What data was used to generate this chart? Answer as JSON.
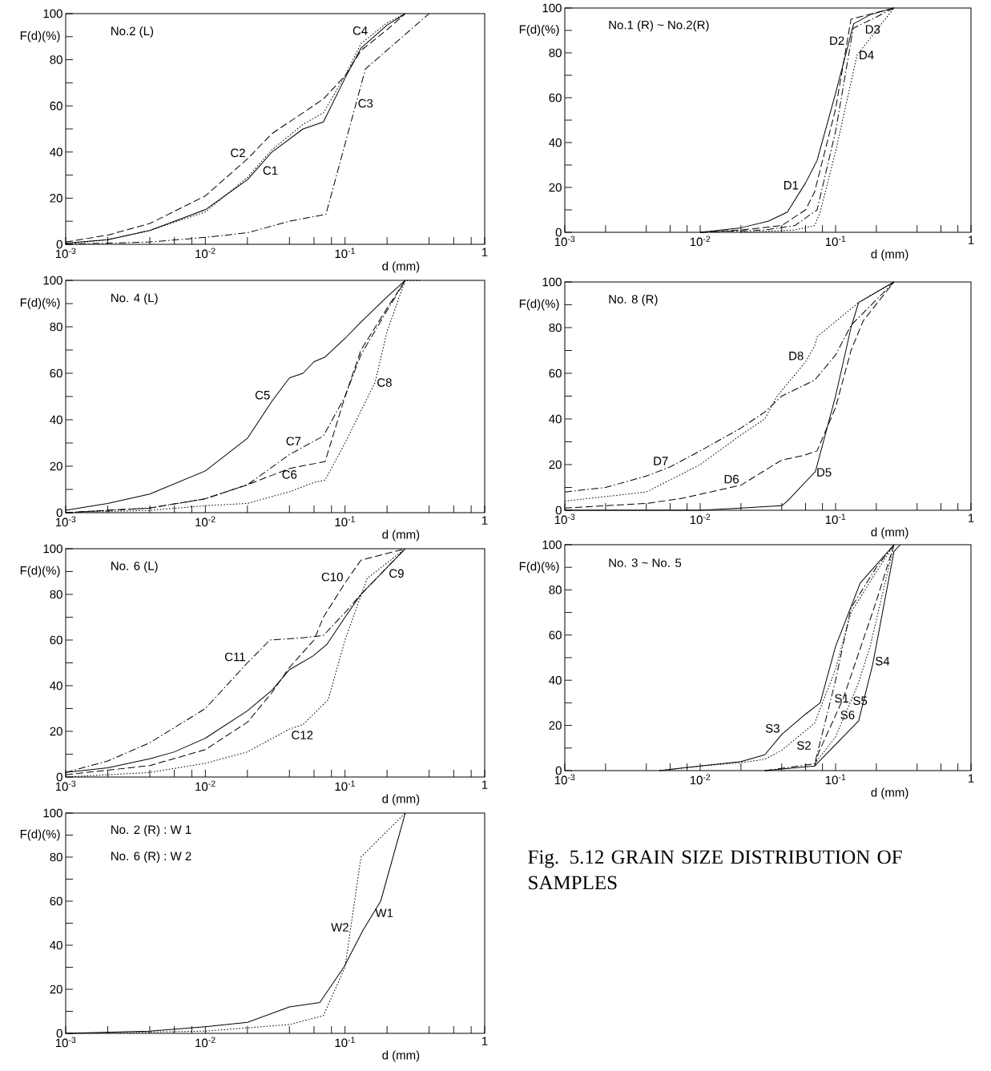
{
  "chart_data": [
    {
      "type": "line",
      "title": "No.2 (L)",
      "xlabel": "d (mm)",
      "ylabel": "F(d)(%)",
      "log": "x",
      "xlim": [
        0.001,
        1
      ],
      "ylim": [
        0,
        100
      ],
      "xticks": [
        {
          "value": 0.001,
          "label": "10$^{-3}$"
        },
        {
          "value": 0.002,
          "label": null
        },
        {
          "value": 0.004,
          "label": null
        },
        {
          "value": 0.006,
          "label": null
        },
        {
          "value": 0.008,
          "label": null
        },
        {
          "value": 0.01,
          "label": "10$^{-2}$"
        },
        {
          "value": 0.02,
          "label": null
        },
        {
          "value": 0.04,
          "label": null
        },
        {
          "value": 0.06,
          "label": null
        },
        {
          "value": 0.08,
          "label": null
        },
        {
          "value": 0.1,
          "label": "10$^{-1}$"
        },
        {
          "value": 0.2,
          "label": null
        },
        {
          "value": 0.4,
          "label": null
        },
        {
          "value": 0.6,
          "label": null
        },
        {
          "value": 0.8,
          "label": null
        },
        1
      ],
      "yticks": [
        0,
        {
          "value": 10,
          "label": null
        },
        20,
        {
          "value": 30,
          "label": null
        },
        40,
        {
          "value": 50,
          "label": null
        },
        60,
        {
          "value": 70,
          "label": null
        },
        80,
        {
          "value": 90,
          "label": null
        },
        100
      ],
      "series": [
        {
          "name": "C1",
          "color": "#000000",
          "line_style": "solid",
          "x": [
            0.001,
            0.002,
            0.004,
            0.01,
            0.02,
            0.03,
            0.05,
            0.07,
            0.1,
            0.13,
            0.2,
            0.27
          ],
          "values": [
            0.5,
            2,
            6,
            15,
            28,
            40,
            50,
            53,
            72,
            85,
            95,
            100
          ]
        },
        {
          "name": "C2",
          "color": "#000000",
          "line_style": "dashed",
          "x": [
            0.001,
            0.002,
            0.004,
            0.01,
            0.02,
            0.03,
            0.05,
            0.07,
            0.1,
            0.13,
            0.2,
            0.27
          ],
          "values": [
            1,
            4,
            9,
            21,
            37,
            48,
            57,
            63,
            73,
            84,
            93,
            100
          ]
        },
        {
          "name": "C3",
          "color": "#000000",
          "line_style": "dashdot",
          "x": [
            0.001,
            0.002,
            0.004,
            0.01,
            0.02,
            0.04,
            0.073,
            0.14,
            0.4
          ],
          "values": [
            0,
            0.5,
            1,
            3,
            5,
            10,
            13,
            76,
            100
          ]
        },
        {
          "name": "C4",
          "color": "#000000",
          "line_style": "dotted",
          "x": [
            0.001,
            0.002,
            0.004,
            0.01,
            0.02,
            0.03,
            0.05,
            0.07,
            0.1,
            0.13,
            0.2,
            0.27
          ],
          "values": [
            0,
            2,
            6,
            14,
            29,
            41,
            52,
            57,
            73,
            87,
            96,
            100
          ]
        }
      ]
    },
    {
      "type": "line",
      "title": "No.1 (R) ~ No.2(R)",
      "xlabel": "d (mm)",
      "ylabel": "F(d)(%)",
      "log": "x",
      "xlim": [
        0.001,
        1
      ],
      "ylim": [
        0,
        100
      ],
      "xticks": [
        {
          "value": 0.001,
          "label": "10$^{-3}$"
        },
        {
          "value": 0.002,
          "label": null
        },
        {
          "value": 0.004,
          "label": null
        },
        {
          "value": 0.006,
          "label": null
        },
        {
          "value": 0.008,
          "label": null
        },
        {
          "value": 0.01,
          "label": "10$^{-2}$"
        },
        {
          "value": 0.02,
          "label": null
        },
        {
          "value": 0.04,
          "label": null
        },
        {
          "value": 0.06,
          "label": null
        },
        {
          "value": 0.08,
          "label": null
        },
        {
          "value": 0.1,
          "label": "10$^{-1}$"
        },
        {
          "value": 0.2,
          "label": null
        },
        {
          "value": 0.4,
          "label": null
        },
        {
          "value": 0.6,
          "label": null
        },
        {
          "value": 0.8,
          "label": null
        },
        1
      ],
      "yticks": [
        0,
        {
          "value": 10,
          "label": null
        },
        20,
        {
          "value": 30,
          "label": null
        },
        40,
        {
          "value": 50,
          "label": null
        },
        60,
        {
          "value": 70,
          "label": null
        },
        80,
        {
          "value": 90,
          "label": null
        },
        100
      ],
      "series": [
        {
          "name": "D1",
          "color": "#000000",
          "line_style": "solid",
          "x": [
            0.01,
            0.02,
            0.032,
            0.044,
            0.06,
            0.073,
            0.1,
            0.136,
            0.18,
            0.27
          ],
          "values": [
            0,
            2,
            5,
            9,
            22,
            32,
            62,
            93,
            97,
            100
          ]
        },
        {
          "name": "D2",
          "color": "#000000",
          "line_style": "dashed",
          "x": [
            0.01,
            0.02,
            0.04,
            0.06,
            0.07,
            0.1,
            0.13,
            0.2,
            0.27
          ],
          "values": [
            0,
            1,
            3,
            10,
            18,
            55,
            95,
            98,
            100
          ]
        },
        {
          "name": "D3",
          "color": "#000000",
          "line_style": "dashdot",
          "x": [
            0.01,
            0.03,
            0.05,
            0.073,
            0.1,
            0.135,
            0.2,
            0.27
          ],
          "values": [
            0,
            1,
            3,
            10,
            45,
            91,
            96,
            100
          ]
        },
        {
          "name": "D4",
          "color": "#000000",
          "line_style": "dotted",
          "x": [
            0.02,
            0.05,
            0.07,
            0.077,
            0.1,
            0.144,
            0.2,
            0.27
          ],
          "values": [
            0,
            1,
            3,
            9,
            36,
            79,
            90,
            100
          ]
        }
      ]
    },
    {
      "type": "line",
      "title": "No. 4 (L)",
      "xlabel": "d (mm)",
      "ylabel": "F(d)(%)",
      "log": "x",
      "xlim": [
        0.001,
        1
      ],
      "ylim": [
        0,
        100
      ],
      "xticks": [
        {
          "value": 0.001,
          "label": "10$^{-3}$"
        },
        {
          "value": 0.002,
          "label": null
        },
        {
          "value": 0.004,
          "label": null
        },
        {
          "value": 0.006,
          "label": null
        },
        {
          "value": 0.008,
          "label": null
        },
        {
          "value": 0.01,
          "label": "10$^{-2}$"
        },
        {
          "value": 0.02,
          "label": null
        },
        {
          "value": 0.04,
          "label": null
        },
        {
          "value": 0.06,
          "label": null
        },
        {
          "value": 0.08,
          "label": null
        },
        {
          "value": 0.1,
          "label": "10$^{-1}$"
        },
        {
          "value": 0.2,
          "label": null
        },
        {
          "value": 0.4,
          "label": null
        },
        {
          "value": 0.6,
          "label": null
        },
        {
          "value": 0.8,
          "label": null
        },
        1
      ],
      "yticks": [
        0,
        {
          "value": 10,
          "label": null
        },
        20,
        {
          "value": 30,
          "label": null
        },
        40,
        {
          "value": 50,
          "label": null
        },
        60,
        {
          "value": 70,
          "label": null
        },
        80,
        {
          "value": 90,
          "label": null
        },
        100
      ],
      "series": [
        {
          "name": "C5",
          "color": "#000000",
          "line_style": "solid",
          "x": [
            0.001,
            0.002,
            0.004,
            0.01,
            0.02,
            0.03,
            0.04,
            0.05,
            0.06,
            0.072,
            0.1,
            0.13,
            0.193,
            0.27
          ],
          "values": [
            1,
            4,
            8,
            18,
            32,
            48,
            58,
            60,
            65,
            67,
            75,
            82,
            92,
            100
          ]
        },
        {
          "name": "C6",
          "color": "#000000",
          "line_style": "dashed",
          "x": [
            0.001,
            0.004,
            0.01,
            0.02,
            0.04,
            0.072,
            0.1,
            0.13,
            0.2,
            0.27
          ],
          "values": [
            0,
            2,
            6,
            12,
            19,
            22,
            50,
            70,
            88,
            100
          ]
        },
        {
          "name": "C7",
          "color": "#000000",
          "line_style": "dashdot",
          "x": [
            0.001,
            0.004,
            0.01,
            0.02,
            0.04,
            0.07,
            0.1,
            0.13,
            0.2,
            0.27
          ],
          "values": [
            0,
            2,
            6,
            12,
            25,
            33,
            50,
            68,
            87,
            100
          ]
        },
        {
          "name": "C8",
          "color": "#000000",
          "line_style": "dotted",
          "x": [
            0.001,
            0.004,
            0.01,
            0.02,
            0.04,
            0.06,
            0.072,
            0.1,
            0.164,
            0.2,
            0.27,
            0.35
          ],
          "values": [
            0,
            1,
            3,
            4,
            9,
            13,
            14,
            30,
            56,
            78,
            100,
            100
          ]
        }
      ]
    },
    {
      "type": "line",
      "title": "No. 8 (R)",
      "xlabel": "d (mm)",
      "ylabel": "F(d)(%)",
      "log": "x",
      "xlim": [
        0.001,
        1
      ],
      "ylim": [
        0,
        100
      ],
      "xticks": [
        {
          "value": 0.001,
          "label": "10$^{-3}$"
        },
        {
          "value": 0.002,
          "label": null
        },
        {
          "value": 0.004,
          "label": null
        },
        {
          "value": 0.006,
          "label": null
        },
        {
          "value": 0.008,
          "label": null
        },
        {
          "value": 0.01,
          "label": "10$^{-2}$"
        },
        {
          "value": 0.02,
          "label": null
        },
        {
          "value": 0.04,
          "label": null
        },
        {
          "value": 0.06,
          "label": null
        },
        {
          "value": 0.08,
          "label": null
        },
        {
          "value": 0.1,
          "label": "10$^{-1}$"
        },
        {
          "value": 0.2,
          "label": null
        },
        {
          "value": 0.4,
          "label": null
        },
        {
          "value": 0.6,
          "label": null
        },
        {
          "value": 0.8,
          "label": null
        },
        1
      ],
      "yticks": [
        0,
        {
          "value": 10,
          "label": null
        },
        20,
        {
          "value": 30,
          "label": null
        },
        40,
        {
          "value": 50,
          "label": null
        },
        60,
        {
          "value": 70,
          "label": null
        },
        80,
        {
          "value": 90,
          "label": null
        },
        100
      ],
      "series": [
        {
          "name": "D5",
          "color": "#000000",
          "line_style": "solid",
          "x": [
            0.001,
            0.01,
            0.02,
            0.04,
            0.044,
            0.071,
            0.1,
            0.13,
            0.148,
            0.27
          ],
          "values": [
            0,
            0,
            1,
            2,
            4,
            17,
            50,
            80,
            91,
            100
          ]
        },
        {
          "name": "D6",
          "color": "#000000",
          "line_style": "dashed",
          "x": [
            0.001,
            0.004,
            0.007,
            0.01,
            0.02,
            0.04,
            0.058,
            0.073,
            0.1,
            0.13,
            0.16,
            0.27
          ],
          "values": [
            1,
            3,
            5,
            7,
            11,
            22,
            24,
            26,
            45,
            70,
            83,
            100
          ]
        },
        {
          "name": "D7",
          "color": "#000000",
          "line_style": "dashdot",
          "x": [
            0.001,
            0.002,
            0.004,
            0.006,
            0.01,
            0.02,
            0.03,
            0.04,
            0.07,
            0.1,
            0.13,
            0.27
          ],
          "values": [
            8,
            10,
            15,
            19,
            26,
            36,
            43,
            50,
            57,
            68,
            81,
            100
          ]
        },
        {
          "name": "D8",
          "color": "#000000",
          "line_style": "dotted",
          "x": [
            0.001,
            0.002,
            0.004,
            0.01,
            0.02,
            0.03,
            0.037,
            0.06,
            0.07,
            0.073,
            0.148,
            0.27
          ],
          "values": [
            4,
            6,
            8,
            20,
            33,
            40,
            50,
            65,
            72,
            76,
            91,
            100
          ]
        }
      ]
    },
    {
      "type": "line",
      "title": "No. 6 (L)",
      "xlabel": "d (mm)",
      "ylabel": "F(d)(%)",
      "log": "x",
      "xlim": [
        0.001,
        1
      ],
      "ylim": [
        0,
        100
      ],
      "xticks": [
        {
          "value": 0.001,
          "label": "10$^{-3}$"
        },
        {
          "value": 0.002,
          "label": null
        },
        {
          "value": 0.004,
          "label": null
        },
        {
          "value": 0.006,
          "label": null
        },
        {
          "value": 0.008,
          "label": null
        },
        {
          "value": 0.01,
          "label": "10$^{-2}$"
        },
        {
          "value": 0.02,
          "label": null
        },
        {
          "value": 0.04,
          "label": null
        },
        {
          "value": 0.06,
          "label": null
        },
        {
          "value": 0.08,
          "label": null
        },
        {
          "value": 0.1,
          "label": "10$^{-1}$"
        },
        {
          "value": 0.2,
          "label": null
        },
        {
          "value": 0.4,
          "label": null
        },
        {
          "value": 0.6,
          "label": null
        },
        {
          "value": 0.8,
          "label": null
        },
        1
      ],
      "yticks": [
        0,
        {
          "value": 10,
          "label": null
        },
        20,
        {
          "value": 30,
          "label": null
        },
        40,
        {
          "value": 50,
          "label": null
        },
        60,
        {
          "value": 70,
          "label": null
        },
        80,
        {
          "value": 90,
          "label": null
        },
        100
      ],
      "series": [
        {
          "name": "C9",
          "color": "#000000",
          "line_style": "solid",
          "x": [
            0.001,
            0.002,
            0.004,
            0.006,
            0.01,
            0.02,
            0.03,
            0.04,
            0.059,
            0.074,
            0.1,
            0.13,
            0.27
          ],
          "values": [
            2,
            4,
            8,
            11,
            17,
            29,
            38,
            47,
            53,
            58,
            70,
            80,
            100
          ]
        },
        {
          "name": "C10",
          "color": "#000000",
          "line_style": "dashed",
          "x": [
            0.001,
            0.004,
            0.01,
            0.02,
            0.03,
            0.04,
            0.06,
            0.07,
            0.1,
            0.13,
            0.27
          ],
          "values": [
            1,
            5,
            12,
            24,
            37,
            48,
            60,
            70,
            85,
            95,
            100
          ]
        },
        {
          "name": "C11",
          "color": "#000000",
          "line_style": "dashdot",
          "x": [
            0.001,
            0.002,
            0.004,
            0.01,
            0.02,
            0.029,
            0.05,
            0.07,
            0.1,
            0.13,
            0.27
          ],
          "values": [
            2,
            7,
            15,
            30,
            50,
            60,
            61,
            62,
            72,
            80,
            100
          ]
        },
        {
          "name": "C12",
          "color": "#000000",
          "line_style": "dotted",
          "x": [
            0.001,
            0.004,
            0.01,
            0.02,
            0.04,
            0.05,
            0.076,
            0.1,
            0.144,
            0.27
          ],
          "values": [
            0,
            2,
            6,
            11,
            21,
            23,
            34,
            60,
            87,
            100
          ]
        }
      ]
    },
    {
      "type": "line",
      "title": "No. 3 ~ No. 5",
      "xlabel": "d (mm)",
      "ylabel": "F(d)(%)",
      "log": "x",
      "xlim": [
        0.001,
        1
      ],
      "ylim": [
        0,
        100
      ],
      "xticks": [
        {
          "value": 0.001,
          "label": "10$^{-3}$"
        },
        {
          "value": 0.002,
          "label": null
        },
        {
          "value": 0.004,
          "label": null
        },
        {
          "value": 0.006,
          "label": null
        },
        {
          "value": 0.008,
          "label": null
        },
        {
          "value": 0.01,
          "label": "10$^{-2}$"
        },
        {
          "value": 0.02,
          "label": null
        },
        {
          "value": 0.04,
          "label": null
        },
        {
          "value": 0.06,
          "label": null
        },
        {
          "value": 0.08,
          "label": null
        },
        {
          "value": 0.1,
          "label": "10$^{-1}$"
        },
        {
          "value": 0.2,
          "label": null
        },
        {
          "value": 0.4,
          "label": null
        },
        {
          "value": 0.6,
          "label": null
        },
        {
          "value": 0.8,
          "label": null
        },
        1
      ],
      "yticks": [
        0,
        {
          "value": 10,
          "label": null
        },
        20,
        {
          "value": 30,
          "label": null
        },
        40,
        {
          "value": 50,
          "label": null
        },
        60,
        {
          "value": 70,
          "label": null
        },
        80,
        {
          "value": 90,
          "label": null
        },
        100
      ],
      "series": [
        {
          "name": "S1",
          "color": "#000000",
          "line_style": "dashdot",
          "x": [
            0.03,
            0.07,
            0.075,
            0.1,
            0.13,
            0.2,
            0.27
          ],
          "values": [
            0,
            3,
            10,
            40,
            72,
            90,
            100
          ]
        },
        {
          "name": "S2",
          "color": "#000000",
          "line_style": "dotted",
          "x": [
            0.005,
            0.01,
            0.02,
            0.03,
            0.04,
            0.07,
            0.1,
            0.13,
            0.2,
            0.27
          ],
          "values": [
            0,
            2,
            3.5,
            5,
            9,
            21,
            45,
            70,
            88,
            100
          ]
        },
        {
          "name": "S3",
          "color": "#000000",
          "line_style": "solid",
          "x": [
            0.005,
            0.01,
            0.02,
            0.03,
            0.04,
            0.06,
            0.077,
            0.1,
            0.152,
            0.27
          ],
          "values": [
            0,
            2,
            4,
            7,
            16,
            25,
            30,
            55,
            83,
            100
          ]
        },
        {
          "name": "S4",
          "color": "#000000",
          "line_style": "solid",
          "x": [
            0.03,
            0.07,
            0.148,
            0.188,
            0.27,
            0.3
          ],
          "values": [
            0,
            2,
            22,
            47,
            97,
            100
          ]
        },
        {
          "name": "S5",
          "color": "#000000",
          "line_style": "dotted",
          "x": [
            0.07,
            0.1,
            0.146,
            0.18,
            0.27
          ],
          "values": [
            3,
            15,
            38,
            55,
            100
          ]
        },
        {
          "name": "S6",
          "color": "#000000",
          "line_style": "dashed",
          "x": [
            0.07,
            0.075,
            0.114,
            0.2,
            0.27
          ],
          "values": [
            2,
            8,
            32,
            75,
            100
          ]
        }
      ]
    },
    {
      "type": "line",
      "title": "No. 2 (R) : W 1",
      "subtitle": "No. 6 (R) : W 2",
      "xlabel": "d (mm)",
      "ylabel": "F(d)(%)",
      "log": "x",
      "xlim": [
        0.001,
        1
      ],
      "ylim": [
        0,
        100
      ],
      "xticks": [
        {
          "value": 0.001,
          "label": "10$^{-3}$"
        },
        {
          "value": 0.002,
          "label": null
        },
        {
          "value": 0.004,
          "label": null
        },
        {
          "value": 0.006,
          "label": null
        },
        {
          "value": 0.008,
          "label": null
        },
        {
          "value": 0.01,
          "label": "10$^{-2}$"
        },
        {
          "value": 0.02,
          "label": null
        },
        {
          "value": 0.04,
          "label": null
        },
        {
          "value": 0.06,
          "label": null
        },
        {
          "value": 0.08,
          "label": null
        },
        {
          "value": 0.1,
          "label": "10$^{-1}$"
        },
        {
          "value": 0.2,
          "label": null
        },
        {
          "value": 0.4,
          "label": null
        },
        {
          "value": 0.6,
          "label": null
        },
        {
          "value": 0.8,
          "label": null
        },
        1
      ],
      "yticks": [
        0,
        {
          "value": 10,
          "label": null
        },
        20,
        {
          "value": 30,
          "label": null
        },
        40,
        {
          "value": 50,
          "label": null
        },
        60,
        {
          "value": 70,
          "label": null
        },
        80,
        {
          "value": 90,
          "label": null
        },
        100
      ],
      "series": [
        {
          "name": "W1",
          "color": "#000000",
          "line_style": "solid",
          "x": [
            0.001,
            0.004,
            0.01,
            0.02,
            0.04,
            0.066,
            0.098,
            0.135,
            0.18,
            0.27
          ],
          "values": [
            0,
            1,
            3,
            5,
            12,
            14,
            30,
            47,
            60,
            100
          ]
        },
        {
          "name": "W2",
          "color": "#000000",
          "line_style": "dotted",
          "x": [
            0.001,
            0.01,
            0.04,
            0.07,
            0.1,
            0.13,
            0.27
          ],
          "values": [
            0,
            1,
            4,
            8,
            30,
            80,
            100
          ]
        }
      ]
    },
    {
      "type": "other",
      "title": "Fig.  5.12  GRAIN SIZE DISTRIBUTION OF SAMPLES"
    }
  ]
}
